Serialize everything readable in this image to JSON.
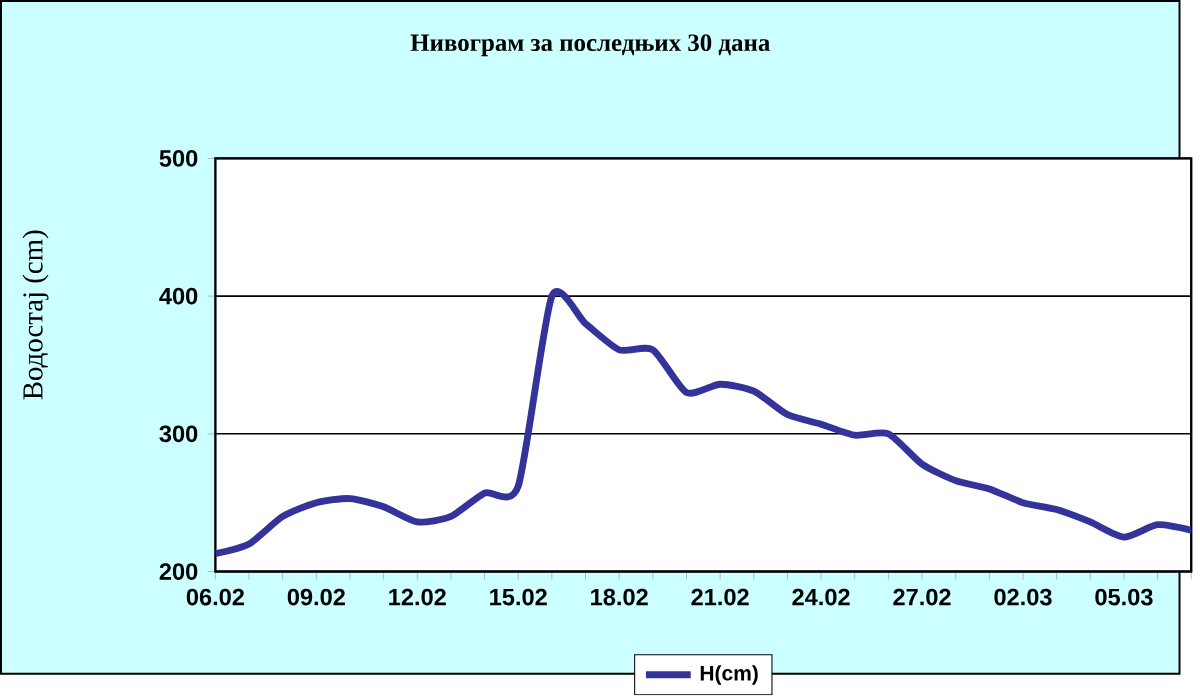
{
  "chart_data": {
    "type": "line",
    "title": "Нивограм за последњих 30 дана",
    "ylabel": "Водостај (cm)",
    "categories": [
      "06.02",
      null,
      null,
      "09.02",
      null,
      null,
      "12.02",
      null,
      null,
      "15.02",
      null,
      null,
      "18.02",
      null,
      null,
      "21.02",
      null,
      null,
      "24.02",
      null,
      null,
      "27.02",
      null,
      null,
      "02.03",
      null,
      null,
      "05.03",
      null,
      null
    ],
    "series": [
      {
        "name": "H(cm)",
        "color": "#333399",
        "values": [
          213,
          220,
          240,
          250,
          253,
          247,
          236,
          240,
          257,
          262,
          400,
          380,
          361,
          361,
          330,
          336,
          331,
          314,
          307,
          299,
          300,
          278,
          266,
          260,
          250,
          245,
          236,
          225,
          234,
          230
        ]
      }
    ],
    "ylim": [
      200,
      500
    ],
    "yticks": [
      200,
      300,
      400,
      500
    ],
    "grid": "y",
    "legend": "bottom",
    "marker": "none",
    "line_style": "solid"
  }
}
